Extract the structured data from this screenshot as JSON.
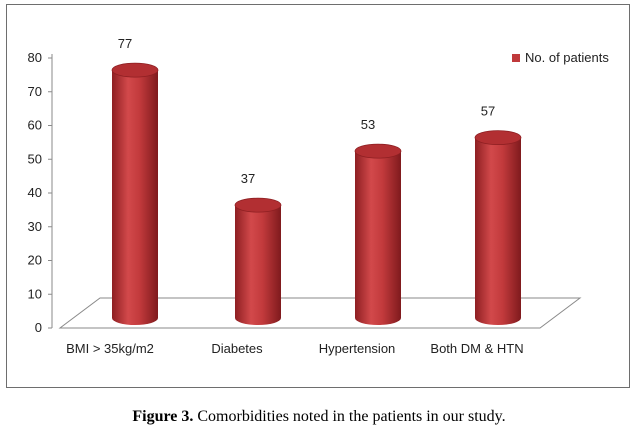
{
  "chart_data": {
    "type": "bar",
    "categories": [
      "BMI > 35kg/m2",
      "Diabetes",
      "Hypertension",
      "Both DM & HTN"
    ],
    "series": [
      {
        "name": "No. of patients",
        "values": [
          77,
          37,
          53,
          57
        ]
      }
    ],
    "y_ticks": [
      "0",
      "10",
      "20",
      "30",
      "40",
      "50",
      "60",
      "70",
      "80"
    ],
    "ylim": [
      0,
      80
    ],
    "bar_shape": "cylinder",
    "bar_color": "#c0393b",
    "legend_position": "top-right",
    "grid": false
  },
  "caption": {
    "label": "Figure 3.",
    "text": " Comorbidities noted in the patients in our study."
  }
}
